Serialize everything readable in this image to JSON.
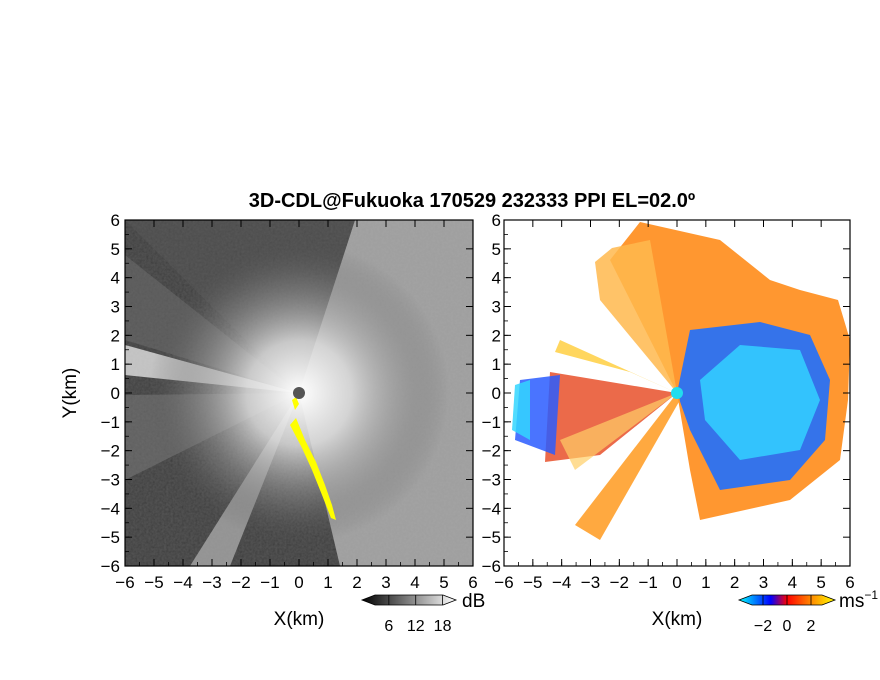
{
  "chart_data": [
    {
      "type": "heatmap",
      "panel": "left",
      "title": "3D-CDL@Fukuoka 170529 232333 PPI EL=02.0º",
      "xlabel": "X(km)",
      "ylabel": "Y(km)",
      "xlim": [
        -6,
        6
      ],
      "ylim": [
        -6,
        6
      ],
      "x_ticks": [
        "−6",
        "−5",
        "−4",
        "−3",
        "−2",
        "−1",
        "0",
        "1",
        "2",
        "3",
        "4",
        "5",
        "6"
      ],
      "y_ticks": [
        "6",
        "5",
        "4",
        "3",
        "2",
        "1",
        "0",
        "−1",
        "−2",
        "−3",
        "−4",
        "−5",
        "−6"
      ],
      "colorbar": {
        "unit": "dB",
        "ticks": [
          "6",
          "12",
          "18"
        ],
        "tick_values": [
          6,
          12,
          18
        ],
        "range": [
          0,
          21
        ],
        "colors": [
          "#000000",
          "#ffffff"
        ],
        "highlight_color": "#ffff00"
      }
    },
    {
      "type": "heatmap",
      "panel": "right",
      "xlabel": "X(km)",
      "xlim": [
        -6,
        6
      ],
      "ylim": [
        -6,
        6
      ],
      "x_ticks": [
        "−6",
        "−5",
        "−4",
        "−3",
        "−2",
        "−1",
        "0",
        "1",
        "2",
        "3",
        "4",
        "5",
        "6"
      ],
      "y_ticks": [
        "6",
        "5",
        "4",
        "3",
        "2",
        "1",
        "0",
        "−1",
        "−2",
        "−3",
        "−4",
        "−5",
        "−6"
      ],
      "colorbar": {
        "unit": "ms",
        "unit_exponent": "−1",
        "ticks": [
          "−2",
          "0",
          "2"
        ],
        "tick_values": [
          -2,
          0,
          2
        ],
        "range": [
          -4,
          4
        ],
        "colors": [
          "#00ffff",
          "#0000ff",
          "#ff0000",
          "#ffff00"
        ]
      }
    }
  ]
}
